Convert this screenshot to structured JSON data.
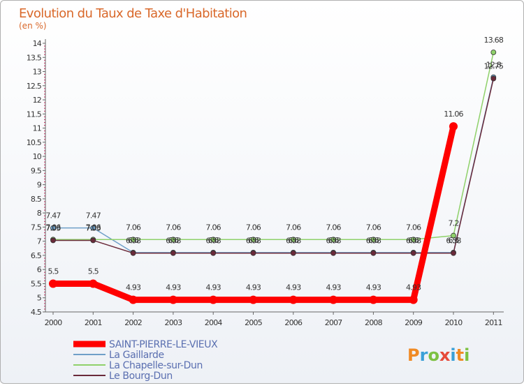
{
  "title": "Evolution du Taux de Taxe d'Habitation",
  "subtitle": "(en %)",
  "brand": {
    "letters": [
      "P",
      "r",
      "o",
      "x",
      "i",
      "t",
      "i"
    ],
    "colors": [
      "#f08a24",
      "#3aa0d8",
      "#7cc142",
      "#e64a3a",
      "#3aa0d8",
      "#f08a24",
      "#7cc142"
    ]
  },
  "chart_data": {
    "type": "line",
    "title": "Evolution du Taux de Taxe d'Habitation",
    "ylabel": "(en %)",
    "x": [
      "2000",
      "2001",
      "2002",
      "2003",
      "2004",
      "2005",
      "2006",
      "2007",
      "2008",
      "2009",
      "2010",
      "2011"
    ],
    "ylim": [
      4.5,
      14
    ],
    "yticks": [
      "4.5",
      "5",
      "5.5",
      "6",
      "6.5",
      "7",
      "7.5",
      "8",
      "8.5",
      "9",
      "9.5",
      "10",
      "10.5",
      "11",
      "11.5",
      "12",
      "12.5",
      "13",
      "13.5",
      "14"
    ],
    "series": [
      {
        "name": "SAINT-PIERRE-LE-VIEUX",
        "color": "#ff0000",
        "values": [
          5.5,
          5.5,
          4.93,
          4.93,
          4.93,
          4.93,
          4.93,
          4.93,
          4.93,
          4.93,
          11.06,
          null
        ],
        "labels": [
          "5.5",
          "5.5",
          "4.93",
          "4.93",
          "4.93",
          "4.93",
          "4.93",
          "4.93",
          "4.93",
          "4.93",
          "11.06",
          ""
        ]
      },
      {
        "name": "La Gaillarde",
        "color": "#6f9fc8",
        "values": [
          7.47,
          7.47,
          6.6,
          6.6,
          6.6,
          6.6,
          6.6,
          6.6,
          6.6,
          6.6,
          6.6,
          12.8
        ],
        "labels": [
          "7.47",
          "7.47",
          "6.6",
          "6.6",
          "6.6",
          "6.6",
          "6.6",
          "6.6",
          "6.6",
          "6.6",
          "6.6",
          "12.8"
        ]
      },
      {
        "name": "La Chapelle-sur-Dun",
        "color": "#8fd16a",
        "values": [
          7.06,
          7.06,
          7.06,
          7.06,
          7.06,
          7.06,
          7.06,
          7.06,
          7.06,
          7.06,
          7.2,
          13.68
        ],
        "labels": [
          "7.06",
          "7.06",
          "7.06",
          "7.06",
          "7.06",
          "7.06",
          "7.06",
          "7.06",
          "7.06",
          "7.06",
          "7.2",
          "13.68"
        ]
      },
      {
        "name": "Le Bourg-Dun",
        "color": "#6a2a3a",
        "values": [
          7.03,
          7.03,
          6.58,
          6.58,
          6.58,
          6.58,
          6.58,
          6.58,
          6.58,
          6.58,
          6.58,
          12.75
        ],
        "labels": [
          "7.03",
          "7.03",
          "6.58",
          "6.58",
          "6.58",
          "6.58",
          "6.58",
          "6.58",
          "6.58",
          "6.58",
          "6.58",
          "12.75"
        ]
      }
    ],
    "legend": "bottom-left",
    "grid": false
  }
}
